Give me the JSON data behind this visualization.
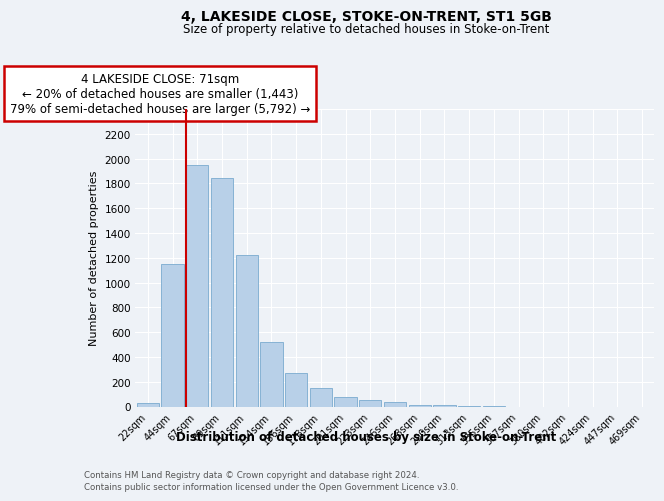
{
  "title": "4, LAKESIDE CLOSE, STOKE-ON-TRENT, ST1 5GB",
  "subtitle": "Size of property relative to detached houses in Stoke-on-Trent",
  "xlabel": "Distribution of detached houses by size in Stoke-on-Trent",
  "ylabel": "Number of detached properties",
  "footnote1": "Contains HM Land Registry data © Crown copyright and database right 2024.",
  "footnote2": "Contains public sector information licensed under the Open Government Licence v3.0.",
  "annotation_title": "4 LAKESIDE CLOSE: 71sqm",
  "annotation_line1": "← 20% of detached houses are smaller (1,443)",
  "annotation_line2": "79% of semi-detached houses are larger (5,792) →",
  "bar_color": "#b8d0e8",
  "bar_edge_color": "#7aabcf",
  "annotation_box_edge": "#cc0000",
  "vline_color": "#cc0000",
  "bg_color": "#eef2f7",
  "plot_bg": "#eef2f7",
  "grid_color": "#ffffff",
  "categories": [
    "22sqm",
    "44sqm",
    "67sqm",
    "89sqm",
    "111sqm",
    "134sqm",
    "156sqm",
    "178sqm",
    "201sqm",
    "223sqm",
    "246sqm",
    "268sqm",
    "290sqm",
    "313sqm",
    "335sqm",
    "357sqm",
    "380sqm",
    "402sqm",
    "424sqm",
    "447sqm",
    "469sqm"
  ],
  "values": [
    30,
    1150,
    1950,
    1840,
    1220,
    520,
    270,
    150,
    75,
    50,
    35,
    10,
    10,
    5,
    5,
    0,
    0,
    0,
    0,
    0,
    0
  ],
  "ylim": [
    0,
    2400
  ],
  "yticks": [
    0,
    200,
    400,
    600,
    800,
    1000,
    1200,
    1400,
    1600,
    1800,
    2000,
    2200,
    2400
  ],
  "vline_bin": 2
}
